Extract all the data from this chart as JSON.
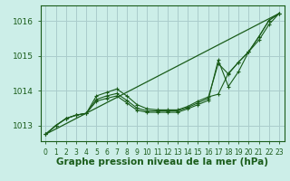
{
  "background_color": "#cceee8",
  "grid_color": "#aacccc",
  "line_color": "#1a5c1a",
  "marker_color": "#1a5c1a",
  "xlabel": "Graphe pression niveau de la mer (hPa)",
  "xlabel_fontsize": 7.5,
  "xlim": [
    -0.5,
    23.5
  ],
  "ylim": [
    1012.55,
    1016.45
  ],
  "yticks": [
    1013,
    1014,
    1015,
    1016
  ],
  "xticks": [
    0,
    1,
    2,
    3,
    4,
    5,
    6,
    7,
    8,
    9,
    10,
    11,
    12,
    13,
    14,
    15,
    16,
    17,
    18,
    19,
    20,
    21,
    22,
    23
  ],
  "series": [
    {
      "x": [
        0,
        1,
        2,
        3,
        4,
        5,
        6,
        7,
        8,
        9,
        10,
        11,
        12,
        13,
        14,
        15,
        16,
        17,
        18,
        19,
        20,
        21,
        22,
        23
      ],
      "y": [
        1012.75,
        1013.0,
        1013.2,
        1013.3,
        1013.35,
        1013.85,
        1013.95,
        1014.05,
        1013.85,
        1013.6,
        1013.48,
        1013.45,
        1013.45,
        1013.45,
        1013.55,
        1013.7,
        1013.82,
        1013.9,
        1014.5,
        1014.82,
        1015.12,
        1015.55,
        1016.02,
        1016.22
      ],
      "has_markers": true
    },
    {
      "x": [
        0,
        1,
        2,
        3,
        4,
        5,
        6,
        7,
        8,
        9,
        10,
        11,
        12,
        13,
        14,
        15,
        16,
        17,
        18,
        19,
        20,
        21,
        22,
        23
      ],
      "y": [
        1012.75,
        1013.0,
        1013.2,
        1013.3,
        1013.35,
        1013.75,
        1013.85,
        1013.92,
        1013.72,
        1013.5,
        1013.42,
        1013.42,
        1013.42,
        1013.42,
        1013.52,
        1013.65,
        1013.78,
        1014.78,
        1014.48,
        1014.82,
        1015.12,
        1015.55,
        1016.02,
        1016.22
      ],
      "has_markers": true
    },
    {
      "x": [
        0,
        1,
        2,
        3,
        4,
        5,
        6,
        7,
        8,
        9,
        10,
        11,
        12,
        13,
        14,
        15,
        16,
        17,
        18,
        19,
        20,
        21,
        22,
        23
      ],
      "y": [
        1012.75,
        1013.0,
        1013.2,
        1013.3,
        1013.35,
        1013.7,
        1013.78,
        1013.85,
        1013.65,
        1013.44,
        1013.38,
        1013.38,
        1013.38,
        1013.38,
        1013.48,
        1013.6,
        1013.72,
        1014.88,
        1014.12,
        1014.55,
        1015.12,
        1015.45,
        1015.9,
        1016.22
      ],
      "has_markers": true
    },
    {
      "x": [
        0,
        23
      ],
      "y": [
        1012.75,
        1016.22
      ],
      "has_markers": false
    }
  ]
}
